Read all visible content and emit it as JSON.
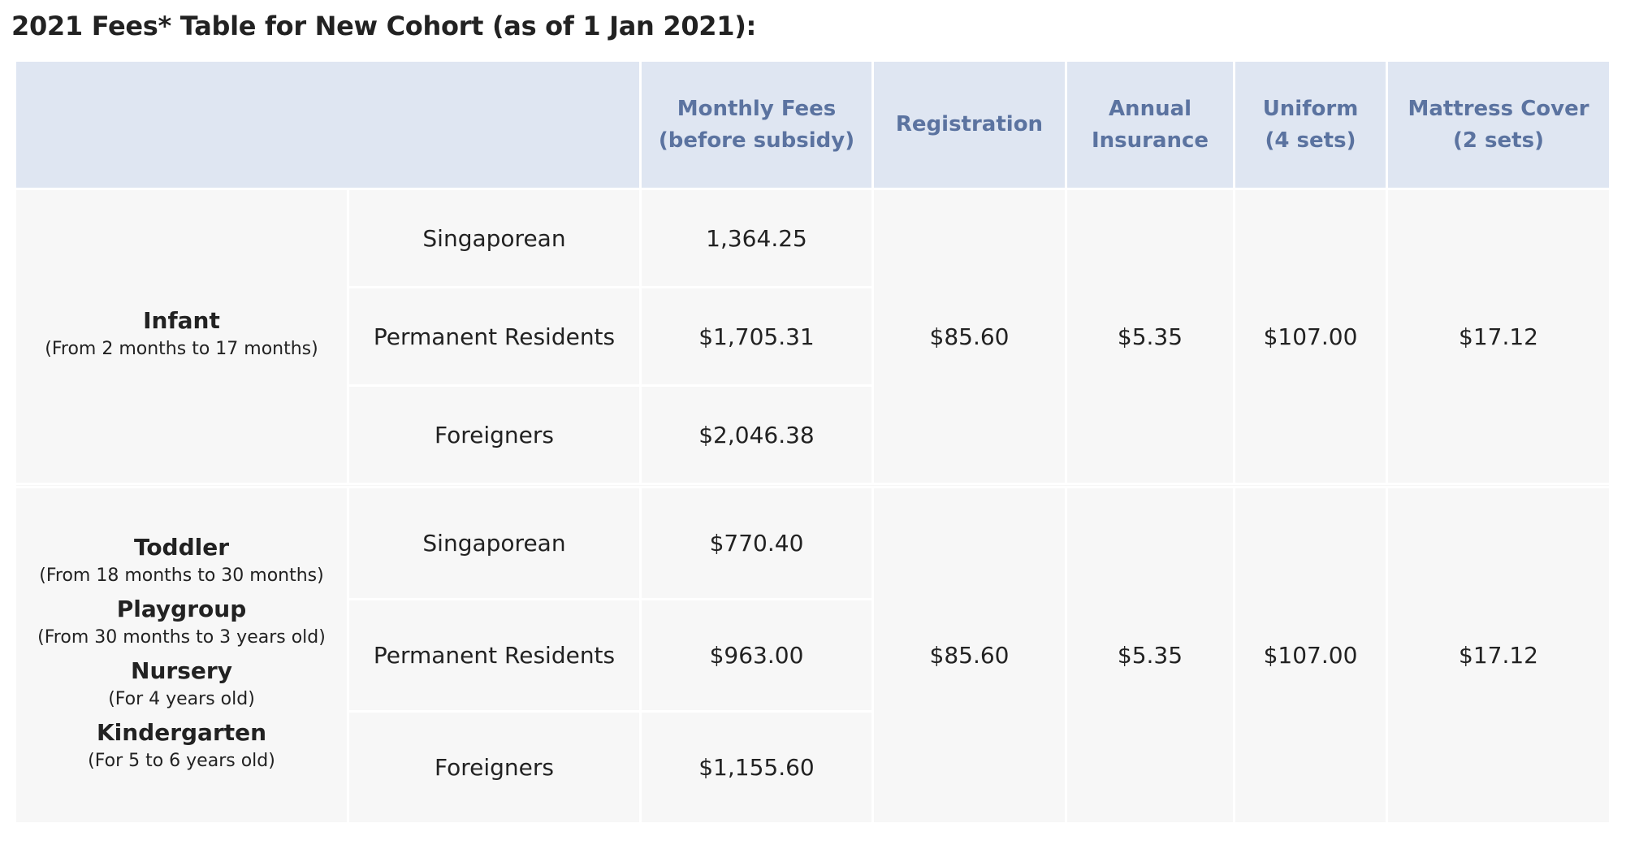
{
  "title": "2021 Fees* Table for New Cohort (as of 1 Jan 2021):",
  "headers": {
    "monthly_fees_1": "Monthly Fees",
    "monthly_fees_2": "(before subsidy)",
    "registration": "Registration",
    "insurance_1": "Annual",
    "insurance_2": "Insurance",
    "uniform_1": "Uniform",
    "uniform_2": "(4 sets)",
    "mattress_1": "Mattress Cover",
    "mattress_2": "(2 sets)"
  },
  "groups": [
    {
      "levels": [
        {
          "name": "Infant",
          "age": "(From 2 months to 17 months)"
        }
      ],
      "rows": [
        {
          "residency": "Singaporean",
          "monthly_fee": "1,364.25"
        },
        {
          "residency": "Permanent Residents",
          "monthly_fee": "$1,705.31"
        },
        {
          "residency": "Foreigners",
          "monthly_fee": "$2,046.38"
        }
      ],
      "registration": "$85.60",
      "insurance": "$5.35",
      "uniform": "$107.00",
      "mattress_cover": "$17.12"
    },
    {
      "levels": [
        {
          "name": "Toddler",
          "age": "(From 18 months to 30 months)"
        },
        {
          "name": "Playgroup",
          "age": "(From 30 months to 3 years old)"
        },
        {
          "name": "Nursery",
          "age": "(For 4 years old)"
        },
        {
          "name": "Kindergarten",
          "age": "(For 5 to 6 years old)"
        }
      ],
      "rows": [
        {
          "residency": "Singaporean",
          "monthly_fee": "$770.40"
        },
        {
          "residency": "Permanent Residents",
          "monthly_fee": "$963.00"
        },
        {
          "residency": "Foreigners",
          "monthly_fee": "$1,155.60"
        }
      ],
      "registration": "$85.60",
      "insurance": "$5.35",
      "uniform": "$107.00",
      "mattress_cover": "$17.12"
    }
  ]
}
